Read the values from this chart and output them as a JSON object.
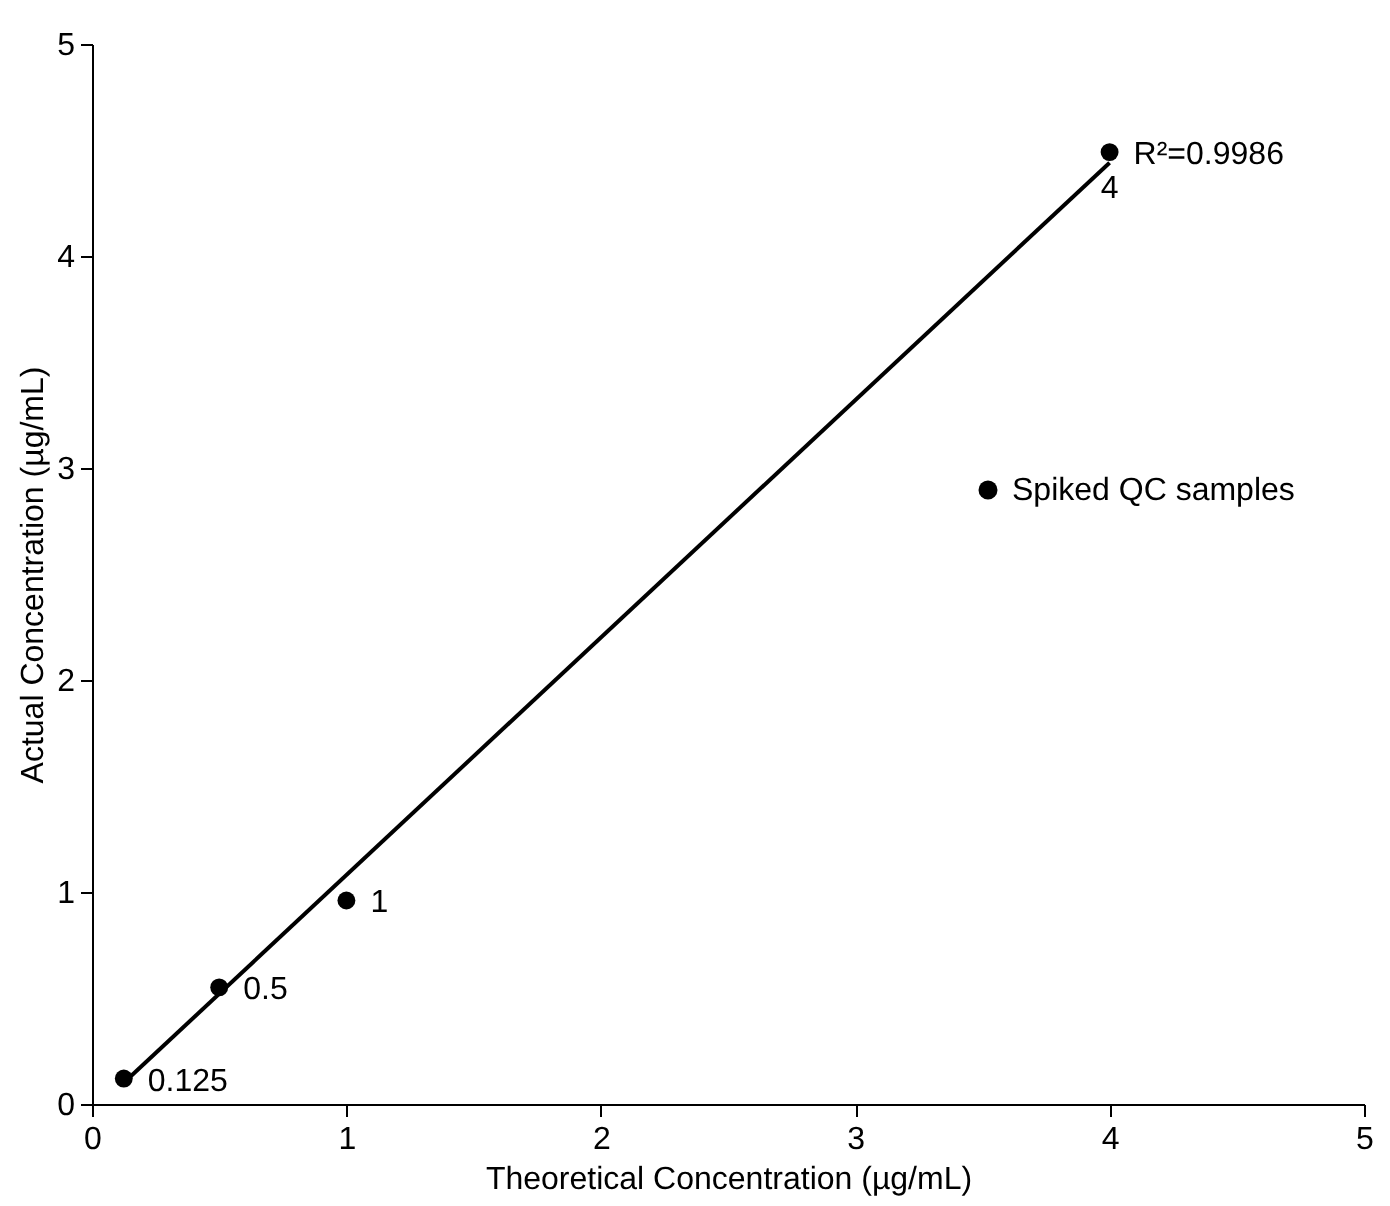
{
  "chart_data": {
    "type": "scatter",
    "xlabel": "Theoretical Concentration (µg/mL)",
    "ylabel": "Actual Concentration (µg/mL)",
    "xlim": [
      0,
      5
    ],
    "xticks": [
      0,
      1,
      2,
      3,
      4,
      5
    ],
    "ylim": [
      0,
      5
    ],
    "yticks": [
      0,
      1,
      2,
      3,
      4,
      5
    ],
    "grid": false,
    "legend": "right",
    "marker": "circle",
    "annotations": [
      {
        "text": "R²=0.9986",
        "x": 4,
        "y": 4.49
      },
      {
        "text": "0.125",
        "x": 0.125,
        "y": 0.12
      },
      {
        "text": "0.5",
        "x": 0.5,
        "y": 0.55
      },
      {
        "text": "1",
        "x": 1,
        "y": 0.96
      },
      {
        "text": "4",
        "x": 4,
        "y": 4.49
      }
    ],
    "series": [
      {
        "name": "Spiked QC samples",
        "color": "#000000",
        "x": [
          0.125,
          0.5,
          1,
          4
        ],
        "values": [
          0.12,
          0.55,
          0.96,
          4.49
        ]
      },
      {
        "type": "line",
        "marker": "none",
        "color": "#000000",
        "x": [
          0.125,
          4
        ],
        "values": [
          0.1,
          4.44
        ]
      }
    ]
  }
}
